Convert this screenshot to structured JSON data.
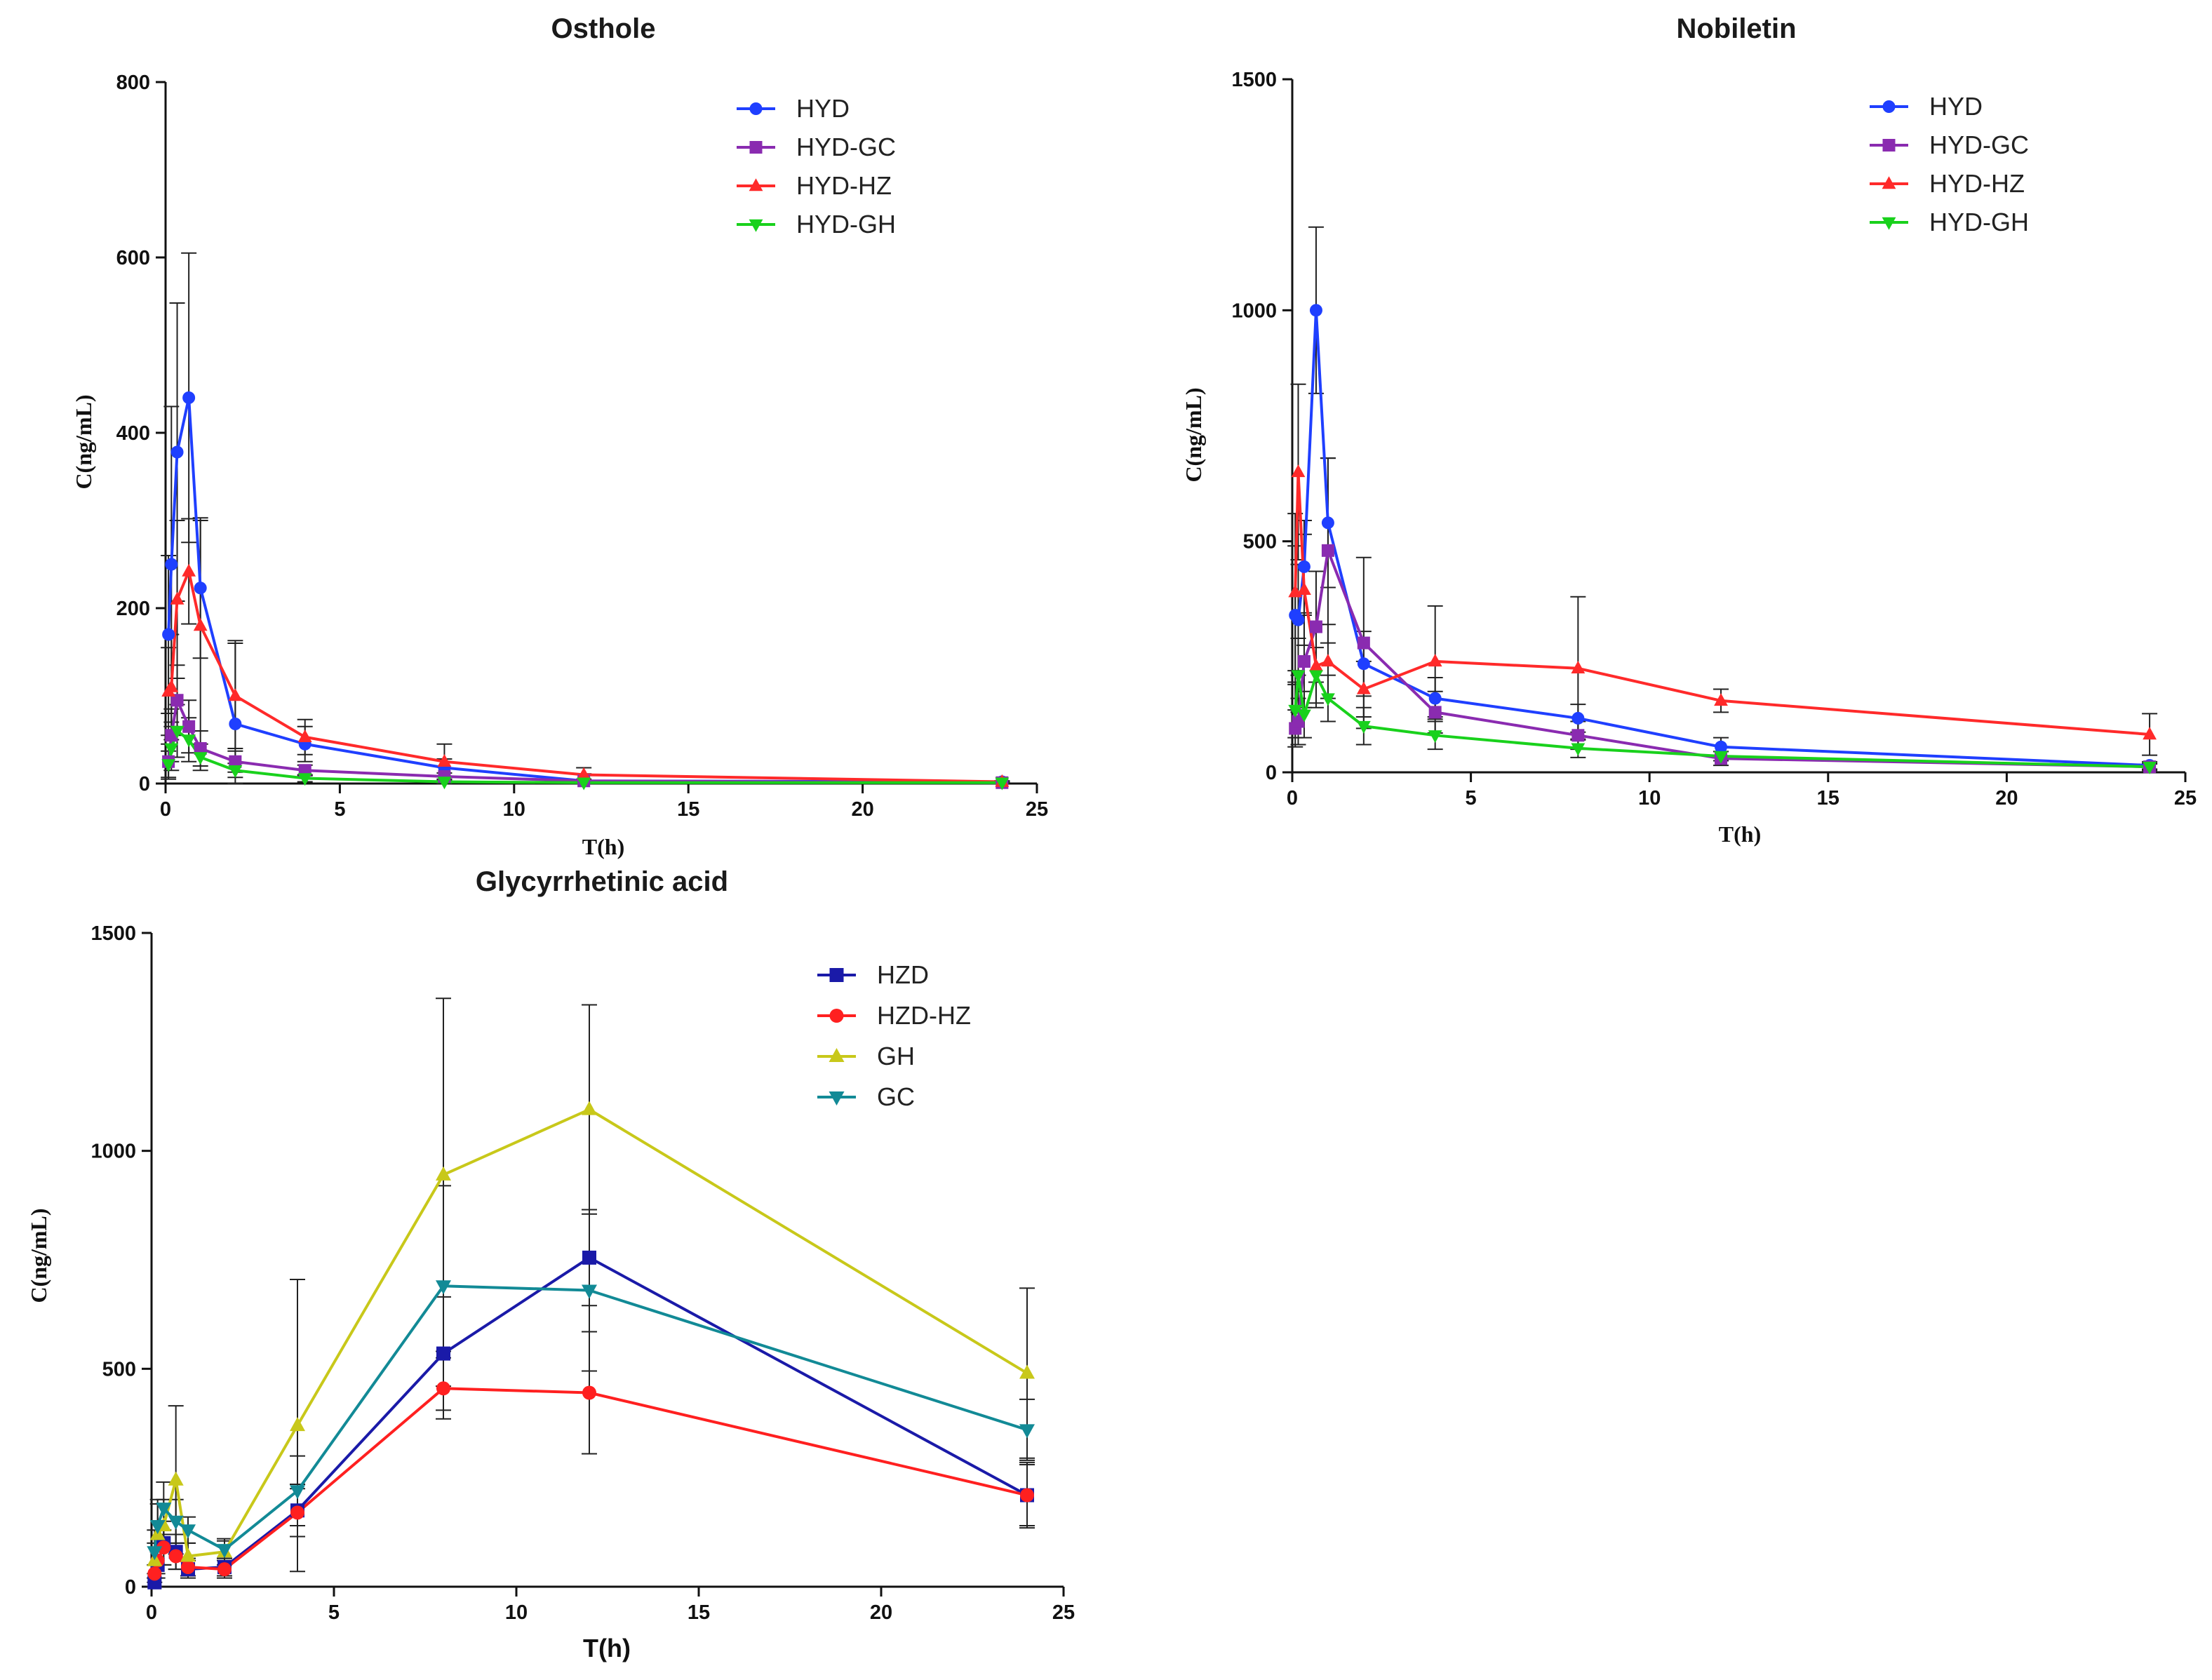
{
  "chart_data": [
    {
      "type": "line",
      "title": "Osthole",
      "xlabel": "T(h)",
      "ylabel": "C(ng/mL)",
      "xlim": [
        0,
        25
      ],
      "ylim": [
        0,
        800
      ],
      "xticks": [
        0,
        5,
        10,
        15,
        20,
        25
      ],
      "yticks": [
        0,
        200,
        400,
        600,
        800
      ],
      "legend_position": "top-right",
      "series": [
        {
          "name": "HYD",
          "color": "#1f3fff",
          "marker": "circle",
          "x": [
            0.083,
            0.167,
            0.333,
            0.667,
            1,
            2,
            4,
            8,
            12,
            24
          ],
          "y": [
            170,
            250,
            378,
            440,
            223,
            68,
            45,
            18,
            3,
            2
          ],
          "err": [
            90,
            180,
            170,
            165,
            80,
            95,
            20,
            10,
            8,
            1
          ]
        },
        {
          "name": "HYD-GC",
          "color": "#8a2bb0",
          "marker": "square",
          "x": [
            0.083,
            0.167,
            0.333,
            0.667,
            1,
            2,
            4,
            8,
            12,
            24
          ],
          "y": [
            25,
            55,
            95,
            65,
            40,
            25,
            15,
            8,
            3,
            1
          ],
          "err": [
            20,
            30,
            40,
            30,
            20,
            12,
            6,
            4,
            2,
            1
          ]
        },
        {
          "name": "HYD-HZ",
          "color": "#ff2a2a",
          "marker": "triangle-up",
          "x": [
            0.083,
            0.167,
            0.333,
            0.667,
            1,
            2,
            4,
            8,
            12,
            24
          ],
          "y": [
            105,
            110,
            210,
            242,
            180,
            100,
            53,
            25,
            10,
            2
          ],
          "err": [
            50,
            60,
            90,
            60,
            120,
            60,
            20,
            20,
            8,
            1
          ]
        },
        {
          "name": "HYD-GH",
          "color": "#19d11c",
          "marker": "triangle-down",
          "x": [
            0.083,
            0.167,
            0.333,
            0.667,
            1,
            2,
            4,
            8,
            12,
            24
          ],
          "y": [
            22,
            40,
            60,
            50,
            30,
            15,
            6,
            2,
            1,
            1
          ],
          "err": [
            15,
            25,
            30,
            25,
            15,
            8,
            4,
            2,
            1,
            1
          ]
        }
      ]
    },
    {
      "type": "line",
      "title": "Nobiletin",
      "xlabel": "T(h)",
      "ylabel": "C(ng/mL)",
      "xlim": [
        0,
        25
      ],
      "ylim": [
        0,
        1500
      ],
      "xticks": [
        0,
        5,
        10,
        15,
        20,
        25
      ],
      "yticks": [
        0,
        500,
        1000,
        1500
      ],
      "legend_position": "top-right",
      "series": [
        {
          "name": "HYD",
          "color": "#1f3fff",
          "marker": "circle",
          "x": [
            0.083,
            0.167,
            0.333,
            0.667,
            1,
            2,
            4,
            8,
            12,
            24
          ],
          "y": [
            340,
            330,
            445,
            1000,
            540,
            235,
            160,
            117,
            55,
            15
          ],
          "err": [
            150,
            120,
            100,
            180,
            140,
            70,
            45,
            30,
            20,
            8
          ]
        },
        {
          "name": "HYD-GC",
          "color": "#8a2bb0",
          "marker": "square",
          "x": [
            0.083,
            0.167,
            0.333,
            0.667,
            1,
            2,
            4,
            8,
            12,
            24
          ],
          "y": [
            95,
            110,
            240,
            315,
            480,
            280,
            130,
            80,
            30,
            12
          ],
          "err": [
            40,
            50,
            100,
            120,
            200,
            185,
            45,
            30,
            15,
            8
          ]
        },
        {
          "name": "HYD-HZ",
          "color": "#ff2a2a",
          "marker": "triangle-up",
          "x": [
            0.083,
            0.167,
            0.333,
            0.667,
            1,
            2,
            4,
            8,
            12,
            24
          ],
          "y": [
            390,
            650,
            395,
            230,
            240,
            180,
            240,
            225,
            155,
            82
          ],
          "err": [
            170,
            190,
            120,
            90,
            80,
            60,
            120,
            155,
            25,
            45
          ]
        },
        {
          "name": "HYD-GH",
          "color": "#19d11c",
          "marker": "triangle-down",
          "x": [
            0.083,
            0.167,
            0.333,
            0.667,
            1,
            2,
            4,
            8,
            12,
            24
          ],
          "y": [
            135,
            210,
            125,
            210,
            160,
            100,
            80,
            52,
            35,
            12
          ],
          "err": [
            60,
            80,
            50,
            60,
            50,
            40,
            30,
            20,
            10,
            6
          ]
        }
      ]
    },
    {
      "type": "line",
      "title": "Glycyrrhetinic acid",
      "xlabel": "T(h)",
      "ylabel": "C(ng/mL)",
      "xlim": [
        0,
        25
      ],
      "ylim": [
        0,
        1500
      ],
      "xticks": [
        0,
        5,
        10,
        15,
        20,
        25
      ],
      "yticks": [
        0,
        500,
        1000,
        1500
      ],
      "legend_position": "top-right",
      "series": [
        {
          "name": "HZD",
          "color": "#1a1aa8",
          "marker": "square",
          "x": [
            0.083,
            0.167,
            0.333,
            0.667,
            1,
            2,
            4,
            8,
            12,
            24
          ],
          "y": [
            10,
            50,
            100,
            80,
            40,
            45,
            175,
            535,
            755,
            210
          ],
          "err": [
            10,
            30,
            50,
            40,
            20,
            20,
            60,
            130,
            110,
            75
          ]
        },
        {
          "name": "HZD-HZ",
          "color": "#ff2020",
          "marker": "circle",
          "x": [
            0.083,
            0.167,
            0.333,
            0.667,
            1,
            2,
            4,
            8,
            12,
            24
          ],
          "y": [
            30,
            60,
            90,
            70,
            45,
            40,
            170,
            455,
            445,
            210
          ],
          "err": [
            20,
            30,
            40,
            30,
            20,
            20,
            55,
            70,
            140,
            70
          ]
        },
        {
          "name": "GH",
          "color": "#c8c81a",
          "marker": "triangle-up",
          "x": [
            0.083,
            0.167,
            0.333,
            0.667,
            1,
            2,
            4,
            8,
            12,
            24
          ],
          "y": [
            60,
            120,
            140,
            245,
            70,
            80,
            370,
            945,
            1095,
            490
          ],
          "err": [
            40,
            70,
            60,
            170,
            30,
            30,
            335,
            405,
            240,
            195
          ]
        },
        {
          "name": "GC",
          "color": "#128a96",
          "marker": "triangle-down",
          "x": [
            0.083,
            0.167,
            0.333,
            0.667,
            1,
            2,
            4,
            8,
            12,
            24
          ],
          "y": [
            80,
            140,
            180,
            150,
            130,
            85,
            220,
            690,
            680,
            360
          ],
          "err": [
            50,
            60,
            60,
            50,
            30,
            20,
            80,
            230,
            185,
            70
          ]
        }
      ]
    }
  ]
}
